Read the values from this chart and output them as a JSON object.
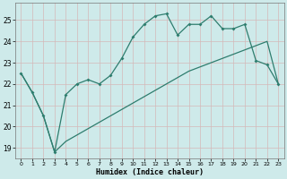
{
  "xlabel": "Humidex (Indice chaleur)",
  "x_values": [
    0,
    1,
    2,
    3,
    4,
    5,
    6,
    7,
    8,
    9,
    10,
    11,
    12,
    13,
    14,
    15,
    16,
    17,
    18,
    19,
    20,
    21,
    22,
    23
  ],
  "upper_line": [
    22.5,
    21.6,
    20.5,
    18.8,
    21.5,
    22.0,
    22.2,
    22.0,
    22.4,
    23.2,
    24.2,
    24.8,
    25.2,
    25.3,
    24.3,
    24.8,
    24.8,
    25.2,
    24.6,
    24.6,
    24.8,
    23.1,
    22.9,
    22.0
  ],
  "lower_line": [
    22.5,
    21.6,
    20.5,
    18.8,
    19.3,
    19.6,
    19.9,
    20.2,
    20.5,
    20.8,
    21.1,
    21.4,
    21.7,
    22.0,
    22.3,
    22.6,
    22.8,
    23.0,
    23.2,
    23.4,
    23.6,
    23.8,
    24.0,
    22.0
  ],
  "line_color": "#2e7d6e",
  "bg_color": "#ceeaea",
  "grid_color": "#b8d8d8",
  "ylim": [
    18.5,
    25.8
  ],
  "yticks": [
    19,
    20,
    21,
    22,
    23,
    24,
    25
  ],
  "xlim": [
    -0.5,
    23.5
  ]
}
